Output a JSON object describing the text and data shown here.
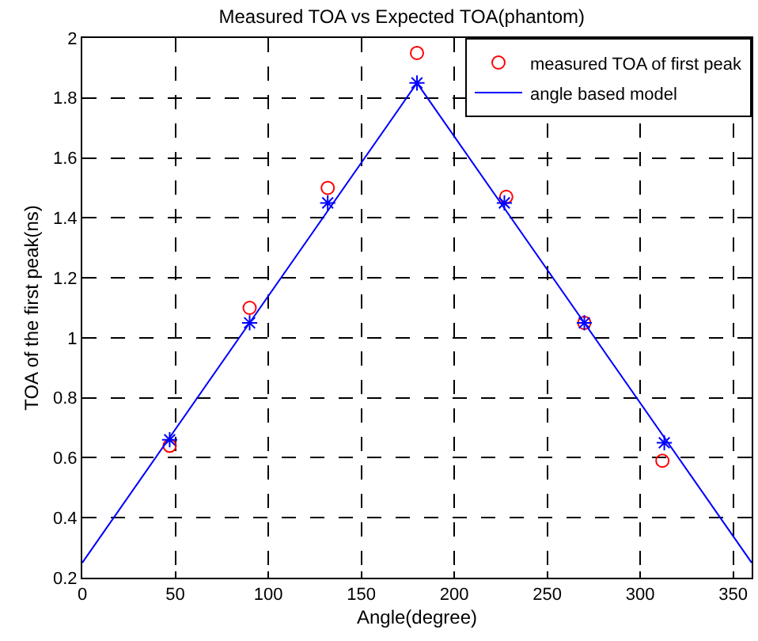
{
  "chart_data": {
    "type": "scatter",
    "title": "Measured TOA vs Expected TOA(phantom)",
    "xlabel": "Angle(degree)",
    "ylabel": "TOA of the first peak(ns)",
    "xlim": [
      0,
      360
    ],
    "xticks": [
      0,
      50,
      100,
      150,
      200,
      250,
      300,
      350
    ],
    "ylim": [
      0.2,
      2
    ],
    "yticks": [
      0.2,
      0.4,
      0.6,
      0.8,
      1,
      1.2,
      1.4,
      1.6,
      1.8,
      2
    ],
    "grid": true,
    "legend": "top right",
    "line_style": "solid",
    "series": [
      {
        "name": "measured TOA of first peak",
        "marker": "circle",
        "color": "#ff0000",
        "x": [
          47,
          90,
          132,
          180,
          228,
          270,
          312
        ],
        "values": [
          0.64,
          1.1,
          1.5,
          1.95,
          1.47,
          1.05,
          0.59
        ]
      },
      {
        "name": "angle based model",
        "type": "line",
        "marker": "none",
        "color": "#0000ff",
        "x": [
          0,
          180,
          360
        ],
        "values": [
          0.25,
          1.85,
          0.25
        ]
      },
      {
        "marker": "cross",
        "color": "#0000ff",
        "x": [
          47,
          90,
          132,
          180,
          227,
          270,
          313
        ],
        "values": [
          0.66,
          1.05,
          1.45,
          1.85,
          1.45,
          1.05,
          0.65
        ]
      }
    ]
  }
}
